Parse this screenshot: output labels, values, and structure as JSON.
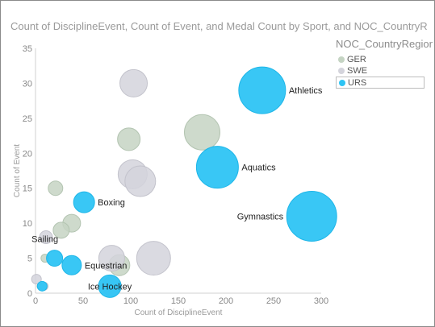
{
  "colors": {
    "GER": "#c5d4c3",
    "SWE": "#d4d4dc",
    "URS": "#2ec4f4"
  },
  "chart_data": {
    "type": "scatter",
    "title": "Count of DisciplineEvent, Count of Event, and Medal Count by Sport, and NOC_CountryRegion",
    "xlabel": "Count of DisciplineEvent",
    "ylabel": "Count of Event",
    "xlim": [
      0,
      300
    ],
    "ylim": [
      0,
      35
    ],
    "xticks": [
      "0",
      "50",
      "100",
      "150",
      "200",
      "250",
      "300"
    ],
    "yticks": [
      "0",
      "5",
      "10",
      "15",
      "20",
      "25",
      "30",
      "35"
    ],
    "legend": {
      "title": "NOC_CountryRegion",
      "position": "right",
      "entries": [
        "GER",
        "SWE",
        "URS"
      ],
      "highlighted": "URS"
    },
    "series": [
      {
        "name": "GER",
        "points": [
          {
            "x": 98,
            "y": 22,
            "size": 14
          },
          {
            "x": 175,
            "y": 23,
            "size": 22
          },
          {
            "x": 21,
            "y": 15,
            "size": 9
          },
          {
            "x": 38,
            "y": 10,
            "size": 11
          },
          {
            "x": 27,
            "y": 9,
            "size": 10
          },
          {
            "x": 10,
            "y": 5,
            "size": 5
          },
          {
            "x": 88,
            "y": 4,
            "size": 13
          },
          {
            "x": 5,
            "y": 1,
            "size": 4
          }
        ],
        "labels": []
      },
      {
        "name": "SWE",
        "points": [
          {
            "x": 103,
            "y": 30,
            "size": 17
          },
          {
            "x": 102,
            "y": 17,
            "size": 18
          },
          {
            "x": 110,
            "y": 16,
            "size": 19
          },
          {
            "x": 124,
            "y": 5,
            "size": 21
          },
          {
            "x": 80,
            "y": 5,
            "size": 16
          },
          {
            "x": 11,
            "y": 8,
            "size": 8
          },
          {
            "x": 1,
            "y": 2,
            "size": 6
          },
          {
            "x": 80,
            "y": 1,
            "size": 12
          },
          {
            "x": 9,
            "y": 1,
            "size": 5
          }
        ],
        "labels": []
      },
      {
        "name": "URS",
        "points": [
          {
            "x": 238,
            "y": 29,
            "size": 29
          },
          {
            "x": 191,
            "y": 18,
            "size": 26
          },
          {
            "x": 290,
            "y": 11,
            "size": 31
          },
          {
            "x": 51,
            "y": 13,
            "size": 13
          },
          {
            "x": 38,
            "y": 4,
            "size": 12
          },
          {
            "x": 20,
            "y": 5,
            "size": 10
          },
          {
            "x": 78,
            "y": 1,
            "size": 14
          },
          {
            "x": 7,
            "y": 1,
            "size": 6
          }
        ],
        "labels": [
          {
            "text": "Athletics",
            "point": 0,
            "side": "right"
          },
          {
            "text": "Aquatics",
            "point": 1,
            "side": "right"
          },
          {
            "text": "Gymnastics",
            "point": 2,
            "side": "left"
          },
          {
            "text": "Boxing",
            "point": 3,
            "side": "right"
          },
          {
            "text": "Equestrian",
            "point": 4,
            "side": "right"
          },
          {
            "text": "Sailing",
            "point": 5,
            "side": "above"
          },
          {
            "text": "Ice Hockey",
            "point": 6,
            "side": "over"
          }
        ]
      }
    ]
  }
}
